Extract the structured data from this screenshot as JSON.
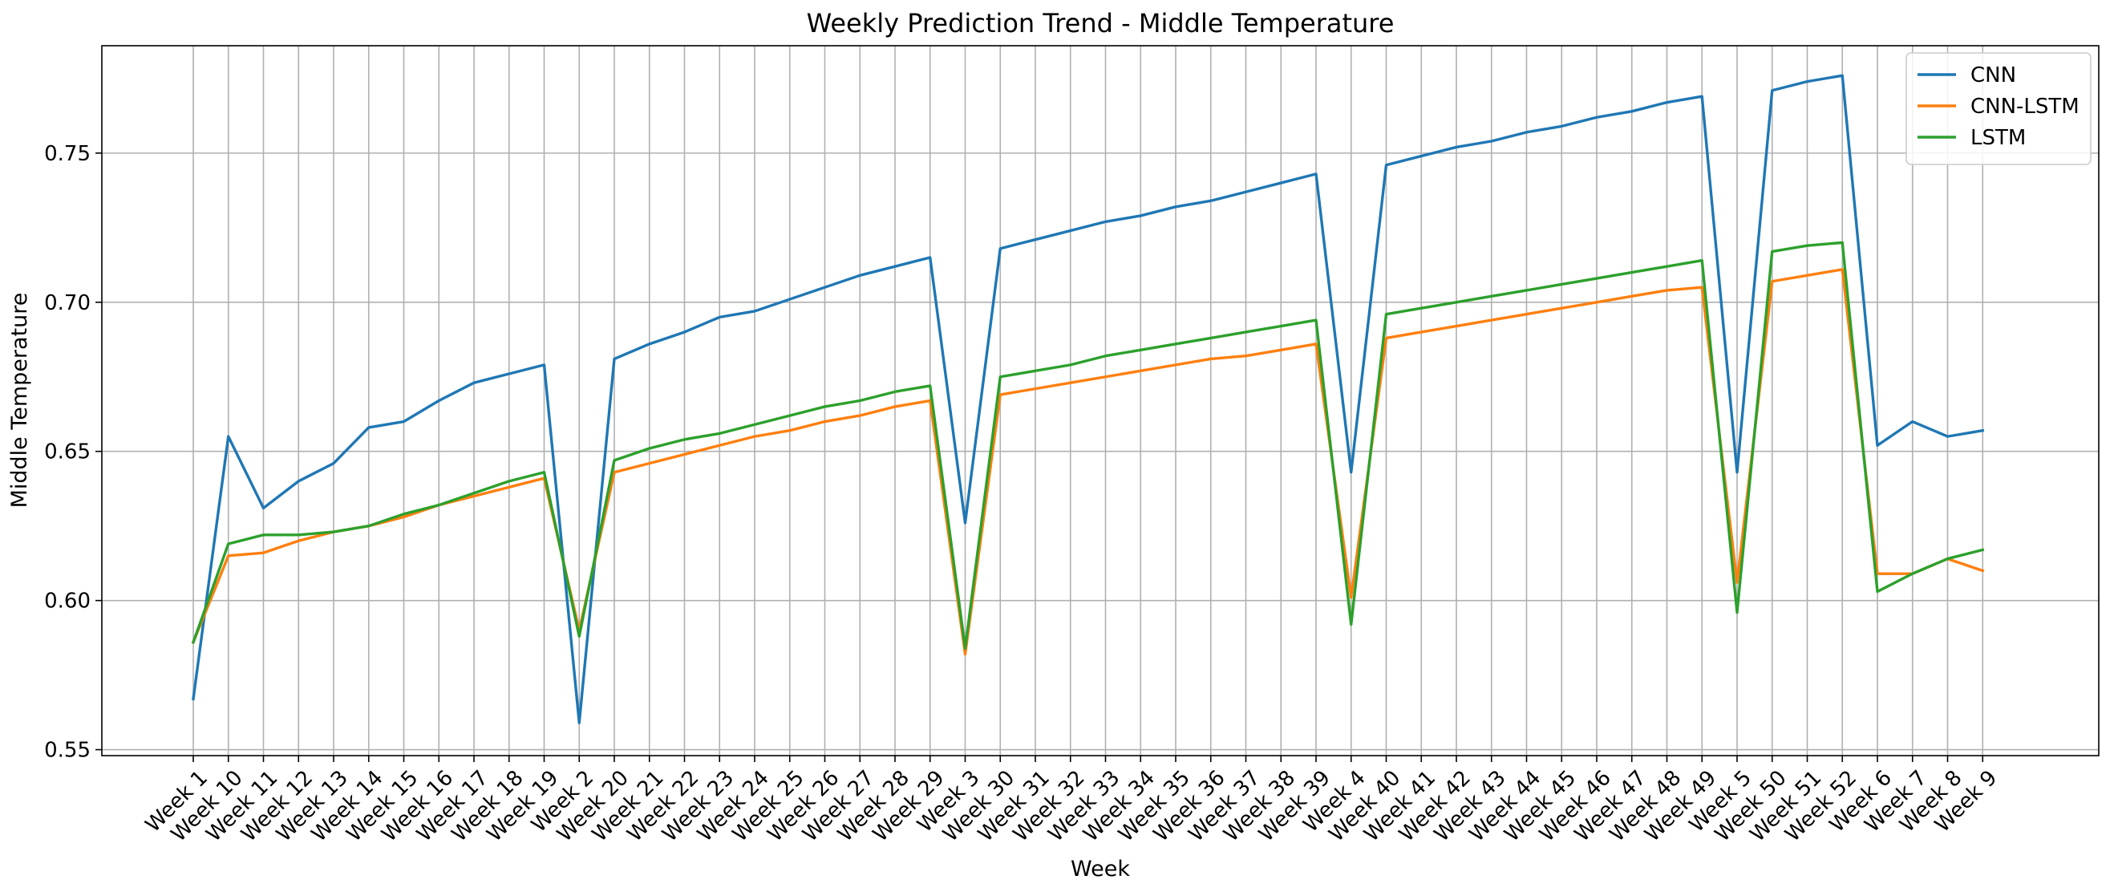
{
  "chart_data": {
    "type": "line",
    "title": "Weekly Prediction Trend - Middle Temperature",
    "xlabel": "Week",
    "ylabel": "Middle Temperature",
    "ylim": [
      0.548,
      0.786
    ],
    "grid": true,
    "legend_position": "top-right",
    "yticks": [
      "0.55",
      "0.60",
      "0.65",
      "0.70",
      "0.75"
    ],
    "categories": [
      "Week 1",
      "Week 10",
      "Week 11",
      "Week 12",
      "Week 13",
      "Week 14",
      "Week 15",
      "Week 16",
      "Week 17",
      "Week 18",
      "Week 19",
      "Week 2",
      "Week 20",
      "Week 21",
      "Week 22",
      "Week 23",
      "Week 24",
      "Week 25",
      "Week 26",
      "Week 27",
      "Week 28",
      "Week 29",
      "Week 3",
      "Week 30",
      "Week 31",
      "Week 32",
      "Week 33",
      "Week 34",
      "Week 35",
      "Week 36",
      "Week 37",
      "Week 38",
      "Week 39",
      "Week 4",
      "Week 40",
      "Week 41",
      "Week 42",
      "Week 43",
      "Week 44",
      "Week 45",
      "Week 46",
      "Week 47",
      "Week 48",
      "Week 49",
      "Week 5",
      "Week 50",
      "Week 51",
      "Week 52",
      "Week 6",
      "Week 7",
      "Week 8",
      "Week 9"
    ],
    "series": [
      {
        "name": "CNN",
        "color": "#1f77b4",
        "values": [
          0.567,
          0.655,
          0.631,
          0.64,
          0.646,
          0.658,
          0.66,
          0.667,
          0.673,
          0.676,
          0.679,
          0.559,
          0.681,
          0.686,
          0.69,
          0.695,
          0.697,
          0.701,
          0.705,
          0.709,
          0.712,
          0.715,
          0.626,
          0.718,
          0.721,
          0.724,
          0.727,
          0.729,
          0.732,
          0.734,
          0.737,
          0.74,
          0.743,
          0.643,
          0.746,
          0.749,
          0.752,
          0.754,
          0.757,
          0.759,
          0.762,
          0.764,
          0.767,
          0.769,
          0.643,
          0.771,
          0.774,
          0.776,
          0.652,
          0.66,
          0.655,
          0.657
        ]
      },
      {
        "name": "CNN-LSTM",
        "color": "#ff7f0e",
        "values": [
          0.586,
          0.615,
          0.616,
          0.62,
          0.623,
          0.625,
          0.628,
          0.632,
          0.635,
          0.638,
          0.641,
          0.59,
          0.643,
          0.646,
          0.649,
          0.652,
          0.655,
          0.657,
          0.66,
          0.662,
          0.665,
          0.667,
          0.582,
          0.669,
          0.671,
          0.673,
          0.675,
          0.677,
          0.679,
          0.681,
          0.682,
          0.684,
          0.686,
          0.601,
          0.688,
          0.69,
          0.692,
          0.694,
          0.696,
          0.698,
          0.7,
          0.702,
          0.704,
          0.705,
          0.606,
          0.707,
          0.709,
          0.711,
          0.609,
          0.609,
          0.614,
          0.61
        ]
      },
      {
        "name": "LSTM",
        "color": "#2ca02c",
        "values": [
          0.586,
          0.619,
          0.622,
          0.622,
          0.623,
          0.625,
          0.629,
          0.632,
          0.636,
          0.64,
          0.643,
          0.588,
          0.647,
          0.651,
          0.654,
          0.656,
          0.659,
          0.662,
          0.665,
          0.667,
          0.67,
          0.672,
          0.584,
          0.675,
          0.677,
          0.679,
          0.682,
          0.684,
          0.686,
          0.688,
          0.69,
          0.692,
          0.694,
          0.592,
          0.696,
          0.698,
          0.7,
          0.702,
          0.704,
          0.706,
          0.708,
          0.71,
          0.712,
          0.714,
          0.596,
          0.717,
          0.719,
          0.72,
          0.603,
          0.609,
          0.614,
          0.617
        ]
      }
    ]
  }
}
